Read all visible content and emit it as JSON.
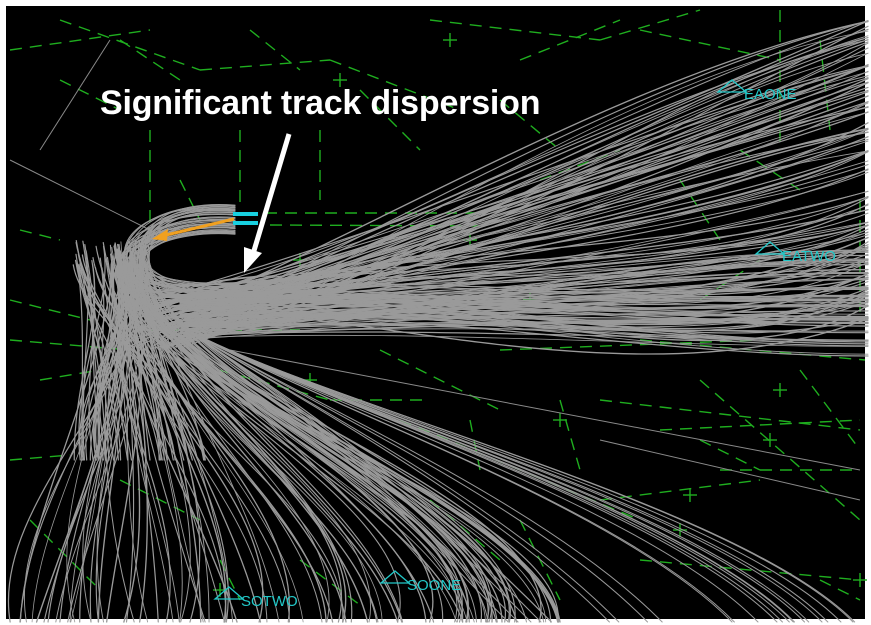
{
  "annotation": {
    "text": "Significant track dispersion",
    "color": "#ffffff"
  },
  "waypoints": [
    {
      "id": "eaone",
      "label": "EAONE"
    },
    {
      "id": "eatwo",
      "label": "EATWO"
    },
    {
      "id": "soone",
      "label": "SOONE"
    },
    {
      "id": "sotwo",
      "label": "SOTWO"
    }
  ],
  "colors": {
    "background": "#000000",
    "frame": "#ffffff",
    "tracks": "#9a9a9a",
    "airways": "#1fae1f",
    "waypoints": "#22c8c8",
    "runway_marker": "#18d0e0",
    "heading_arrow": "#f0a020"
  },
  "symbols": {
    "waypoint": "triangle-icon",
    "runway": "runway-marker-icon",
    "heading": "heading-arrow-icon"
  }
}
